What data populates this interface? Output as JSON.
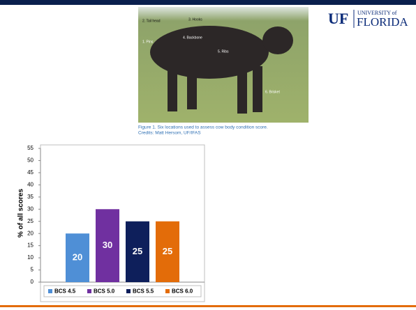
{
  "logo": {
    "mark": "UF",
    "university": "UNIVERSITY of",
    "name": "FLORIDA"
  },
  "photo": {
    "labels": [
      "2. Tail head",
      "3. Hooks",
      "1. Pins",
      "4. Backbone",
      "5. Ribs",
      "6. Brisket"
    ],
    "caption": [
      "Figure 1. Six locations used to assess cow body condition score.",
      "Credits: Matt Hersom, UF/IFAS"
    ]
  },
  "chart_data": {
    "type": "bar",
    "y_label": "% of all scores",
    "categories": [
      null
    ],
    "series": [
      {
        "name": "BCS 4.5",
        "color": "#4f8fd6",
        "values": [
          20
        ]
      },
      {
        "name": "BCS 5.0",
        "color": "#7030a0",
        "values": [
          30
        ]
      },
      {
        "name": "BCS 5.5",
        "color": "#0e1f5b",
        "values": [
          25
        ]
      },
      {
        "name": "BCS 6.0",
        "color": "#e36c09",
        "values": [
          25
        ]
      }
    ],
    "ylim": [
      0,
      55
    ],
    "yticks": [
      0,
      5,
      10,
      15,
      20,
      25,
      30,
      35,
      40,
      45,
      50,
      55
    ],
    "legend": "bottom"
  }
}
